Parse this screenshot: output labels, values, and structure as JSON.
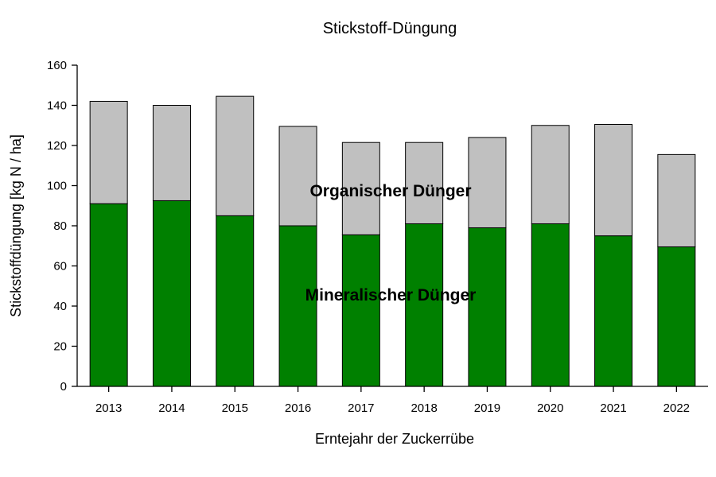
{
  "chart_data": {
    "type": "bar",
    "stacked": true,
    "title": "Stickstoff-Düngung",
    "xlabel": "Erntejahr der Zuckerrübe",
    "ylabel": "Stickstoffdüngung [kg N / ha]",
    "ylim": [
      0,
      160
    ],
    "yticks": [
      0,
      20,
      40,
      60,
      80,
      100,
      120,
      140,
      160
    ],
    "grid": false,
    "categories": [
      "2013",
      "2014",
      "2015",
      "2016",
      "2017",
      "2018",
      "2019",
      "2020",
      "2021",
      "2022"
    ],
    "series": [
      {
        "name": "Mineralischer Dünger",
        "color": "#008000",
        "values": [
          91,
          92.5,
          85,
          80,
          75.5,
          81,
          79,
          81,
          75,
          69.5
        ]
      },
      {
        "name": "Organischer Dünger",
        "color": "#c0c0c0",
        "values": [
          51,
          47.5,
          59.5,
          49.5,
          46,
          40.5,
          45,
          49,
          55.5,
          46
        ]
      }
    ]
  }
}
